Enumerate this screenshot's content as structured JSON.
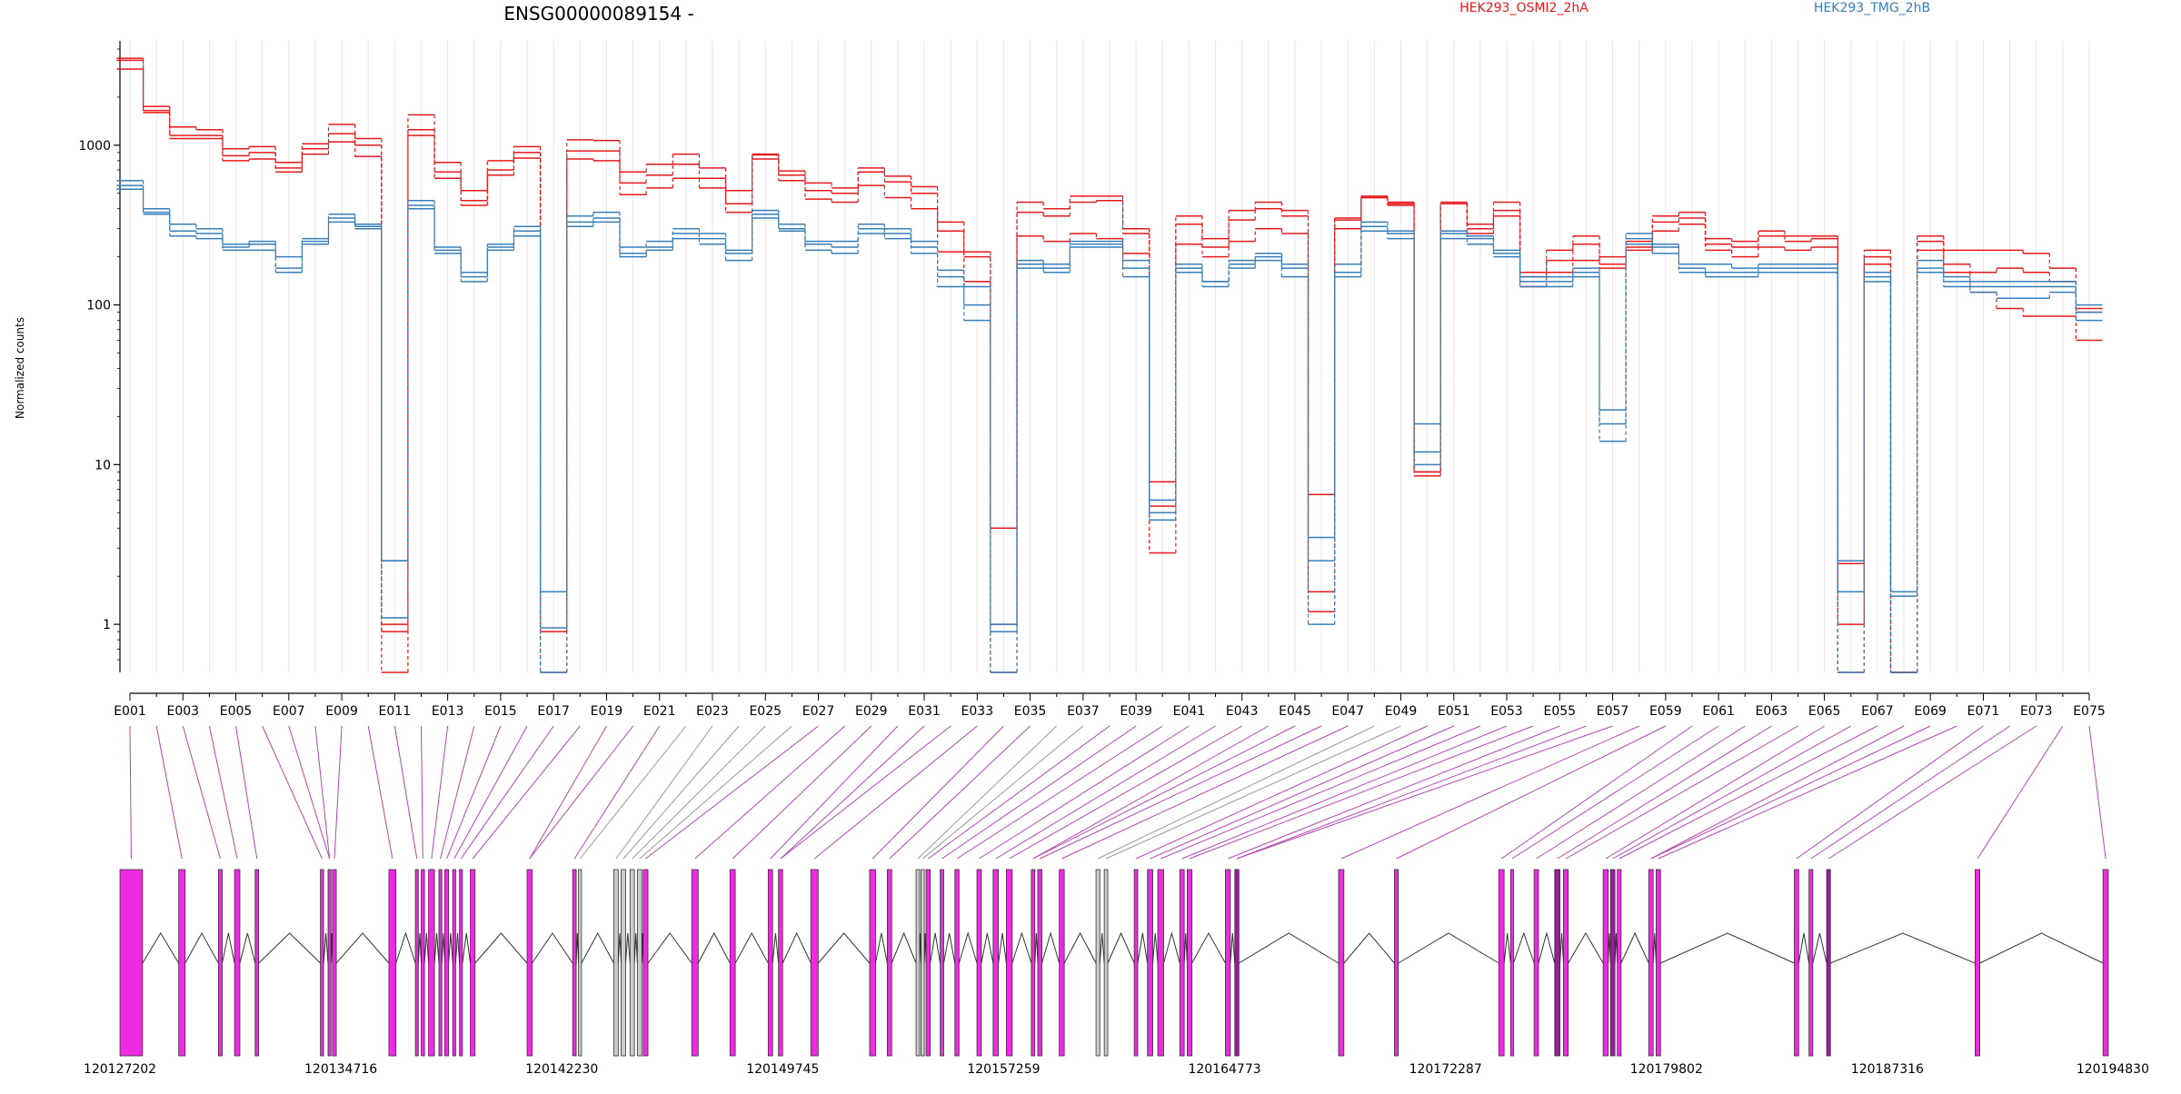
{
  "chart_data": {
    "type": "line",
    "title": "ENSG00000089154 -",
    "ylabel": "Normalized counts",
    "y_scale": "log",
    "ylim": [
      0.5,
      4500
    ],
    "y_ticks": [
      1,
      10,
      100,
      1000
    ],
    "y_tick_labels": [
      "1",
      "10",
      "100",
      "1000"
    ],
    "x_tick_labels": [
      "E001",
      "E003",
      "E005",
      "E007",
      "E009",
      "E011",
      "E013",
      "E015",
      "E017",
      "E019",
      "E021",
      "E023",
      "E025",
      "E027",
      "E029",
      "E031",
      "E033",
      "E035",
      "E037",
      "E039",
      "E041",
      "E043",
      "E045",
      "E047",
      "E049",
      "E051",
      "E053",
      "E055",
      "E057",
      "E059",
      "E061",
      "E063",
      "E065",
      "E067",
      "E069",
      "E071",
      "E073",
      "E075"
    ],
    "exons": [
      "E001",
      "E002",
      "E003",
      "E004",
      "E005",
      "E006",
      "E007",
      "E008",
      "E009",
      "E010",
      "E011",
      "E012",
      "E013",
      "E014",
      "E015",
      "E016",
      "E017",
      "E018",
      "E019",
      "E020",
      "E021",
      "E022",
      "E023",
      "E024",
      "E025",
      "E026",
      "E027",
      "E028",
      "E029",
      "E030",
      "E031",
      "E032",
      "E033",
      "E034",
      "E035",
      "E036",
      "E037",
      "E038",
      "E039",
      "E040",
      "E041",
      "E042",
      "E043",
      "E044",
      "E045",
      "E046",
      "E047",
      "E048",
      "E049",
      "E050",
      "E051",
      "E052",
      "E053",
      "E054",
      "E055",
      "E056",
      "E057",
      "E058",
      "E059",
      "E060",
      "E061",
      "E062",
      "E063",
      "E064",
      "E065",
      "E066",
      "E067",
      "E068",
      "E069",
      "E070",
      "E071",
      "E072",
      "E073",
      "E074",
      "E075"
    ],
    "legend": [
      {
        "label": "HEK293_OSMI2_2hA",
        "color": "#e41a1c"
      },
      {
        "label": "HEK293_TMG_2hB",
        "color": "#377eb8"
      }
    ],
    "series": [
      {
        "group": "HEK293_OSMI2_2hA",
        "color": "#e41a1c",
        "values": [
          3500,
          1750,
          1300,
          1250,
          950,
          980,
          780,
          1020,
          1350,
          1100,
          1,
          1550,
          780,
          520,
          800,
          980,
          1.6,
          1080,
          1070,
          680,
          760,
          880,
          720,
          520,
          880,
          690,
          580,
          540,
          720,
          640,
          550,
          330,
          215,
          4,
          440,
          400,
          480,
          480,
          300,
          7.8,
          360,
          260,
          390,
          440,
          390,
          6.5,
          350,
          470,
          440,
          8.5,
          440,
          320,
          440,
          160,
          220,
          270,
          200,
          250,
          360,
          380,
          260,
          250,
          290,
          270,
          270,
          2.4,
          220,
          0.5,
          270,
          220,
          220,
          220,
          210,
          170,
          95
        ]
      },
      {
        "group": "HEK293_OSMI2_2hA",
        "color": "#e41a1c",
        "values": [
          3400,
          1650,
          1150,
          1150,
          860,
          900,
          720,
          950,
          1180,
          1000,
          0.5,
          1250,
          680,
          450,
          700,
          900,
          0.5,
          920,
          920,
          580,
          650,
          760,
          620,
          430,
          870,
          650,
          520,
          500,
          680,
          590,
          500,
          290,
          200,
          1,
          380,
          360,
          440,
          450,
          280,
          5.5,
          320,
          230,
          340,
          400,
          360,
          1.6,
          340,
          470,
          430,
          9,
          430,
          300,
          390,
          150,
          190,
          240,
          180,
          230,
          330,
          350,
          240,
          230,
          270,
          250,
          260,
          1,
          200,
          0.5,
          250,
          180,
          160,
          170,
          160,
          140,
          90
        ]
      },
      {
        "group": "HEK293_OSMI2_2hA",
        "color": "#e41a1c",
        "values": [
          3000,
          1600,
          1100,
          1100,
          800,
          820,
          680,
          880,
          1050,
          850,
          0.9,
          1150,
          620,
          420,
          650,
          830,
          0.9,
          820,
          800,
          490,
          540,
          620,
          540,
          380,
          820,
          600,
          460,
          440,
          560,
          470,
          400,
          215,
          140,
          0.5,
          270,
          250,
          280,
          260,
          210,
          2.8,
          240,
          200,
          250,
          300,
          280,
          1.2,
          300,
          480,
          420,
          9,
          430,
          280,
          360,
          130,
          160,
          190,
          170,
          220,
          290,
          320,
          220,
          200,
          230,
          220,
          230,
          0.5,
          180,
          0.5,
          220,
          160,
          120,
          95,
          85,
          85,
          60
        ]
      },
      {
        "group": "HEK293_TMG_2hB",
        "color": "#377eb8",
        "values": [
          600,
          400,
          320,
          300,
          240,
          250,
          200,
          260,
          370,
          320,
          2.5,
          450,
          230,
          160,
          240,
          310,
          1.6,
          360,
          380,
          230,
          250,
          300,
          280,
          220,
          390,
          320,
          250,
          250,
          320,
          300,
          250,
          165,
          130,
          1,
          190,
          180,
          250,
          250,
          190,
          6,
          180,
          140,
          190,
          210,
          180,
          3.5,
          180,
          330,
          290,
          18,
          290,
          270,
          220,
          150,
          150,
          170,
          22,
          280,
          240,
          180,
          180,
          170,
          180,
          180,
          180,
          2.5,
          160,
          1.6,
          190,
          150,
          140,
          140,
          140,
          140,
          100
        ]
      },
      {
        "group": "HEK293_TMG_2hB",
        "color": "#377eb8",
        "values": [
          560,
          380,
          290,
          280,
          230,
          240,
          170,
          250,
          350,
          310,
          1.1,
          420,
          220,
          150,
          230,
          290,
          0.95,
          330,
          350,
          210,
          230,
          280,
          260,
          210,
          370,
          300,
          240,
          230,
          300,
          280,
          230,
          150,
          100,
          0.9,
          180,
          170,
          240,
          240,
          170,
          5,
          170,
          140,
          180,
          200,
          170,
          2.5,
          160,
          310,
          280,
          12,
          280,
          260,
          210,
          140,
          140,
          160,
          18,
          260,
          230,
          170,
          160,
          160,
          170,
          170,
          170,
          1.6,
          150,
          1.5,
          170,
          140,
          130,
          130,
          130,
          130,
          90
        ]
      },
      {
        "group": "HEK293_TMG_2hB",
        "color": "#377eb8",
        "values": [
          530,
          370,
          270,
          260,
          220,
          220,
          160,
          240,
          330,
          300,
          2.5,
          400,
          210,
          140,
          220,
          270,
          0.5,
          310,
          330,
          200,
          220,
          260,
          240,
          190,
          350,
          290,
          220,
          210,
          280,
          260,
          210,
          130,
          80,
          0.5,
          170,
          160,
          230,
          230,
          150,
          4.5,
          160,
          130,
          170,
          190,
          150,
          1,
          150,
          290,
          260,
          10,
          260,
          240,
          200,
          130,
          130,
          150,
          14,
          240,
          210,
          160,
          150,
          150,
          160,
          160,
          160,
          0.5,
          140,
          0.5,
          160,
          130,
          120,
          110,
          110,
          120,
          80
        ]
      }
    ],
    "genomic_axis": {
      "tick_labels": [
        "120127202",
        "120134716",
        "120142230",
        "120149745",
        "120157259",
        "120164773",
        "120172287",
        "120179802",
        "120187316",
        "120194830"
      ],
      "start": 120127202,
      "end": 120194830
    },
    "exon_blocks": [
      {
        "start": 120127202,
        "end": 120127970,
        "color": "#ee2ae2"
      },
      {
        "start": 120129200,
        "end": 120129420,
        "color": "#ee2ae2"
      },
      {
        "start": 120130550,
        "end": 120130680,
        "color": "#ee2ae2"
      },
      {
        "start": 120131100,
        "end": 120131280,
        "color": "#ee2ae2"
      },
      {
        "start": 120131800,
        "end": 120131920,
        "color": "#ee2ae2"
      },
      {
        "start": 120134020,
        "end": 120134130,
        "color": "#ee2ae2"
      },
      {
        "start": 120134280,
        "end": 120134380,
        "color": "#ee2ae2"
      },
      {
        "start": 120134430,
        "end": 120134560,
        "color": "#ee2ae2"
      },
      {
        "start": 120136350,
        "end": 120136590,
        "color": "#ee2ae2"
      },
      {
        "start": 120137250,
        "end": 120137350,
        "color": "#ee2ae2"
      },
      {
        "start": 120137450,
        "end": 120137560,
        "color": "#ee2ae2"
      },
      {
        "start": 120137700,
        "end": 120137900,
        "color": "#ee2ae2"
      },
      {
        "start": 120138050,
        "end": 120138150,
        "color": "#ee2ae2"
      },
      {
        "start": 120138250,
        "end": 120138380,
        "color": "#ee2ae2"
      },
      {
        "start": 120138520,
        "end": 120138620,
        "color": "#ee2ae2"
      },
      {
        "start": 120138750,
        "end": 120138850,
        "color": "#ee2ae2"
      },
      {
        "start": 120139120,
        "end": 120139280,
        "color": "#ee2ae2"
      },
      {
        "start": 120141050,
        "end": 120141220,
        "color": "#ee2ae2"
      },
      {
        "start": 120142600,
        "end": 120142720,
        "color": "#ee2ae2"
      },
      {
        "start": 120142800,
        "end": 120142900,
        "color": "#cccccc"
      },
      {
        "start": 120144000,
        "end": 120144150,
        "color": "#cccccc"
      },
      {
        "start": 120144250,
        "end": 120144400,
        "color": "#cccccc"
      },
      {
        "start": 120144550,
        "end": 120144700,
        "color": "#cccccc"
      },
      {
        "start": 120144800,
        "end": 120144950,
        "color": "#cccccc"
      },
      {
        "start": 120145000,
        "end": 120145160,
        "color": "#ee2ae2"
      },
      {
        "start": 120146650,
        "end": 120146870,
        "color": "#ee2ae2"
      },
      {
        "start": 120147950,
        "end": 120148130,
        "color": "#ee2ae2"
      },
      {
        "start": 120149250,
        "end": 120149400,
        "color": "#ee2ae2"
      },
      {
        "start": 120149600,
        "end": 120149740,
        "color": "#ee2ae2"
      },
      {
        "start": 120150700,
        "end": 120150950,
        "color": "#ee2ae2"
      },
      {
        "start": 120152700,
        "end": 120152900,
        "color": "#ee2ae2"
      },
      {
        "start": 120153300,
        "end": 120153450,
        "color": "#ee2ae2"
      },
      {
        "start": 120154280,
        "end": 120154400,
        "color": "#cccccc"
      },
      {
        "start": 120154450,
        "end": 120154560,
        "color": "#cccccc"
      },
      {
        "start": 120154620,
        "end": 120154760,
        "color": "#ee2ae2"
      },
      {
        "start": 120155100,
        "end": 120155220,
        "color": "#ee2ae2"
      },
      {
        "start": 120155600,
        "end": 120155740,
        "color": "#ee2ae2"
      },
      {
        "start": 120156350,
        "end": 120156500,
        "color": "#ee2ae2"
      },
      {
        "start": 120156900,
        "end": 120157080,
        "color": "#ee2ae2"
      },
      {
        "start": 120157350,
        "end": 120157550,
        "color": "#ee2ae2"
      },
      {
        "start": 120158200,
        "end": 120158320,
        "color": "#ee2ae2"
      },
      {
        "start": 120158420,
        "end": 120158560,
        "color": "#ee2ae2"
      },
      {
        "start": 120159150,
        "end": 120159320,
        "color": "#ee2ae2"
      },
      {
        "start": 120160400,
        "end": 120160530,
        "color": "#cccccc"
      },
      {
        "start": 120160680,
        "end": 120160800,
        "color": "#cccccc"
      },
      {
        "start": 120161700,
        "end": 120161820,
        "color": "#ee2ae2"
      },
      {
        "start": 120162150,
        "end": 120162330,
        "color": "#ee2ae2"
      },
      {
        "start": 120162500,
        "end": 120162700,
        "color": "#ee2ae2"
      },
      {
        "start": 120163250,
        "end": 120163400,
        "color": "#ee2ae2"
      },
      {
        "start": 120163500,
        "end": 120163660,
        "color": "#ee2ae2"
      },
      {
        "start": 120164800,
        "end": 120164970,
        "color": "#ee2ae2"
      },
      {
        "start": 120165120,
        "end": 120165260,
        "color": "#9e1aa0"
      },
      {
        "start": 120168650,
        "end": 120168830,
        "color": "#ee2ae2"
      },
      {
        "start": 120170550,
        "end": 120170680,
        "color": "#ee2ae2"
      },
      {
        "start": 120174100,
        "end": 120174280,
        "color": "#ee2ae2"
      },
      {
        "start": 120174500,
        "end": 120174600,
        "color": "#ee2ae2"
      },
      {
        "start": 120175300,
        "end": 120175450,
        "color": "#ee2ae2"
      },
      {
        "start": 120176000,
        "end": 120176180,
        "color": "#9e1aa0"
      },
      {
        "start": 120176300,
        "end": 120176460,
        "color": "#ee2ae2"
      },
      {
        "start": 120177650,
        "end": 120177820,
        "color": "#ee2ae2"
      },
      {
        "start": 120177900,
        "end": 120178050,
        "color": "#9e1aa0"
      },
      {
        "start": 120178130,
        "end": 120178260,
        "color": "#ee2ae2"
      },
      {
        "start": 120179200,
        "end": 120179350,
        "color": "#ee2ae2"
      },
      {
        "start": 120179450,
        "end": 120179600,
        "color": "#ee2ae2"
      },
      {
        "start": 120184150,
        "end": 120184300,
        "color": "#ee2ae2"
      },
      {
        "start": 120184650,
        "end": 120184780,
        "color": "#ee2ae2"
      },
      {
        "start": 120185250,
        "end": 120185380,
        "color": "#9e1aa0"
      },
      {
        "start": 120190300,
        "end": 120190460,
        "color": "#ee2ae2"
      },
      {
        "start": 120194650,
        "end": 120194830,
        "color": "#ee2ae2"
      }
    ]
  }
}
